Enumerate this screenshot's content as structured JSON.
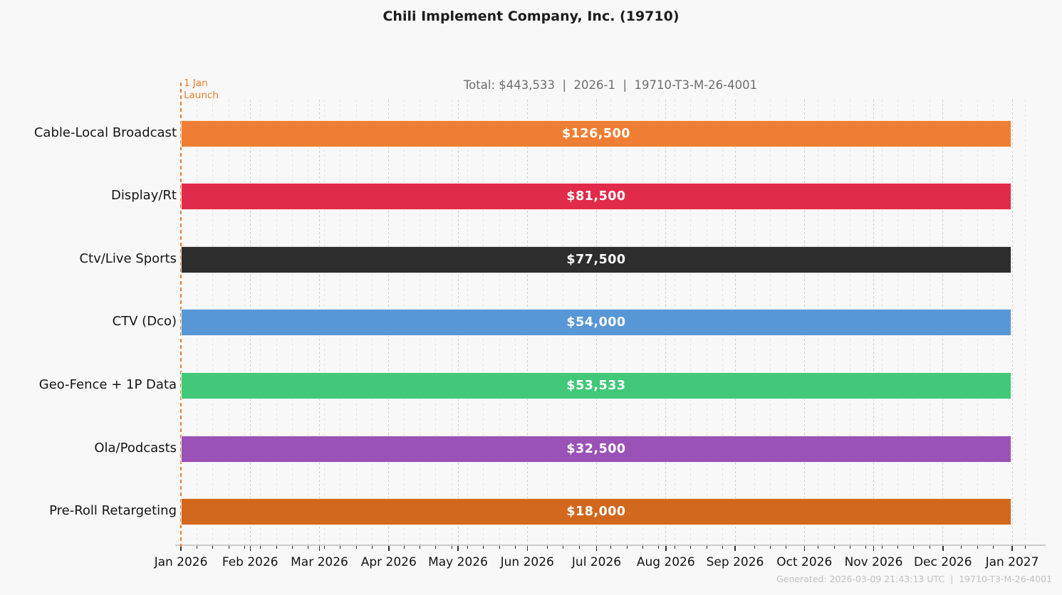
{
  "title": "Chili Implement Company, Inc. (19710)",
  "subtitle": "Total: $443,533  |  2026-1  |  19710-T3-M-26-4001",
  "footer": "Generated: 2026-03-09 21:43:13 UTC  |  19710-T3-M-26-4001",
  "chart_data": {
    "type": "bar",
    "orientation": "horizontal",
    "title": "Chili Implement Company, Inc. (19710)",
    "subtitle": "Total: $443,533  |  2026-1  |  19710-T3-M-26-4001",
    "total_value": 443533,
    "plan_id": "2026-1",
    "order_code": "19710-T3-M-26-4001",
    "categories": [
      "Cable-Local Broadcast",
      "Display/Rt",
      "Ctv/Live Sports",
      "CTV (Dco)",
      "Geo-Fence + 1P Data",
      "Ola/Podcasts",
      "Pre-Roll Retargeting"
    ],
    "values": [
      126500,
      81500,
      77500,
      54000,
      53533,
      32500,
      18000
    ],
    "value_labels": [
      "$126,500",
      "$81,500",
      "$77,500",
      "$54,000",
      "$53,533",
      "$32,500",
      "$18,000"
    ],
    "bar_colors": [
      "#EE7E33",
      "#E12B4A",
      "#2D2D2D",
      "#5897D6",
      "#41C878",
      "#9A52B6",
      "#D2671E"
    ],
    "bar_value_text_color": "#ffffff",
    "bar_span": {
      "start": "Jan 2026",
      "end": "Jan 2027"
    },
    "x_tick_labels": [
      "Jan 2026",
      "Feb 2026",
      "Mar 2026",
      "Apr 2026",
      "May 2026",
      "Jun 2026",
      "Jul 2026",
      "Aug 2026",
      "Sep 2026",
      "Oct 2026",
      "Nov 2026",
      "Dec 2026",
      "Jan 2027"
    ],
    "annotation": {
      "text_line1": "1 Jan",
      "text_line2": "Launch",
      "x": "Jan 2026",
      "color": "#E57E2E",
      "line_style": "dashed"
    },
    "gridlines": "vertical dashed, weekly minor + monthly major",
    "legend": "none",
    "background": "#f8f8f8"
  }
}
